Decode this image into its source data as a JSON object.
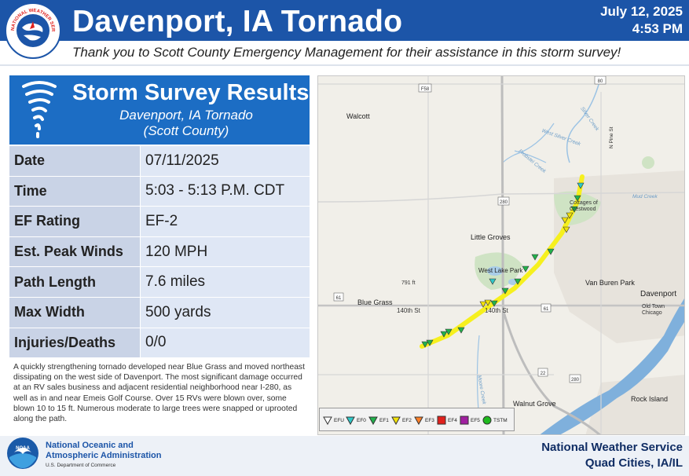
{
  "header": {
    "title": "Davenport, IA Tornado",
    "date": "July 12, 2025",
    "time": "4:53 PM",
    "subtitle": "Thank you to Scott County Emergency Management for their assistance in this storm survey!",
    "logo_text": "NATIONAL WEATHER SERVICE"
  },
  "results": {
    "title": "Storm Survey Results",
    "subtitle_line1": "Davenport, IA Tornado",
    "subtitle_line2": "(Scott County)",
    "rows": [
      {
        "label": "Date",
        "value": "07/11/2025"
      },
      {
        "label": "Time",
        "value": "5:03 - 5:13 P.M. CDT"
      },
      {
        "label": "EF Rating",
        "value": "EF-2"
      },
      {
        "label": "Est. Peak Winds",
        "value": "120 MPH"
      },
      {
        "label": "Path Length",
        "value": "7.6 miles"
      },
      {
        "label": "Max Width",
        "value": "500 yards"
      },
      {
        "label": "Injuries/Deaths",
        "value": "0/0"
      }
    ],
    "description": "A quickly strengthening tornado developed near Blue Grass and moved northeast dissipating on the west side of Davenport. The most significant damage occurred at an RV sales business and adjacent residential neighborhood near I-280, as well as in and near Emeis Golf Course. Over 15 RVs were blown over, some blown 10 to 15 ft. Numerous moderate to large trees were snapped or uprooted along the path."
  },
  "map": {
    "places": {
      "walcott": "Walcott",
      "little_groves": "Little Groves",
      "west_lake_park": "West Lake Park",
      "blue_grass": "Blue Grass",
      "davenport": "Davenport",
      "van_buren_park": "Van Buren Park",
      "old_town_chicago": "Old Town\nChicago",
      "rock_island": "Rock Island",
      "walnut_grove": "Walnut Grove",
      "cottages": "Cottages of\nCrestwood",
      "st140": "140th St",
      "st140b": "140th St",
      "n_pine": "N Pine St",
      "elev": "791 ft"
    },
    "rivers": {
      "silver_creek": "Silver Creek",
      "west_silver": "West Silver Creek",
      "probstei": "Probstei Creek",
      "mud": "Mud Creek",
      "moore": "Moore Creek"
    },
    "shields": [
      "F58",
      "80",
      "280",
      "61",
      "61",
      "22",
      "280"
    ],
    "legend": [
      "EFU",
      "EF0",
      "EF1",
      "EF2",
      "EF3",
      "EF4",
      "EF5",
      "TSTM"
    ],
    "legend_colors": [
      "#ffffff",
      "#2ec8c8",
      "#22b24c",
      "#f2e20a",
      "#ff7f27",
      "#e0201c",
      "#a020a0",
      "#1fba1f"
    ],
    "path_color": "#f6f01e"
  },
  "footer": {
    "noaa_line1": "National Oceanic and",
    "noaa_line2": "Atmospheric Administration",
    "noaa_dept": "U.S. Department of Commerce",
    "nws_line1": "National Weather Service",
    "nws_line2": "Quad Cities, IA/IL",
    "noaa_logo_text": "NOAA"
  }
}
